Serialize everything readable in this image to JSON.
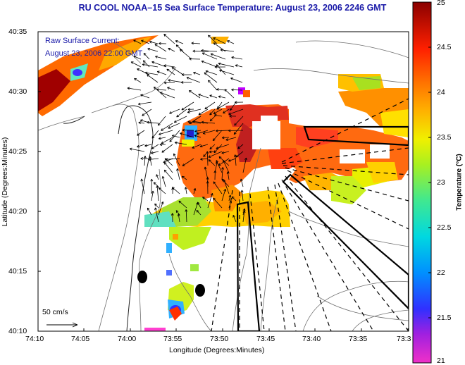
{
  "title": "RU COOL  NOAA–15  Sea Surface Temperature:  August 23, 2006 2246 GMT",
  "current_label": "Raw Surface Current:",
  "current_time": "August 23, 2006 22:00 GMT",
  "scale_label": "50 cm/s",
  "x_axis": {
    "label": "Longitude (Degrees:Minutes)",
    "ticks": [
      "74:10",
      "74:05",
      "74:00",
      "73:55",
      "73:50",
      "73:45",
      "73:40",
      "73:35",
      "73:3"
    ]
  },
  "y_axis": {
    "label": "Latitude (Degrees:Minutes)",
    "ticks": [
      "40:35",
      "40:30",
      "40:25",
      "40:20",
      "40:15",
      "40:10"
    ]
  },
  "colorbar": {
    "label": "Temperature (°C)",
    "ticks": [
      "25",
      "24.5",
      "24",
      "23.5",
      "23",
      "22.5",
      "22",
      "21.5",
      "21"
    ],
    "colors": [
      "#e600e6",
      "#4040ff",
      "#00c8ff",
      "#40e0a0",
      "#c0f000",
      "#ffe000",
      "#ff9000",
      "#ff3000",
      "#c00000",
      "#800000"
    ]
  }
}
